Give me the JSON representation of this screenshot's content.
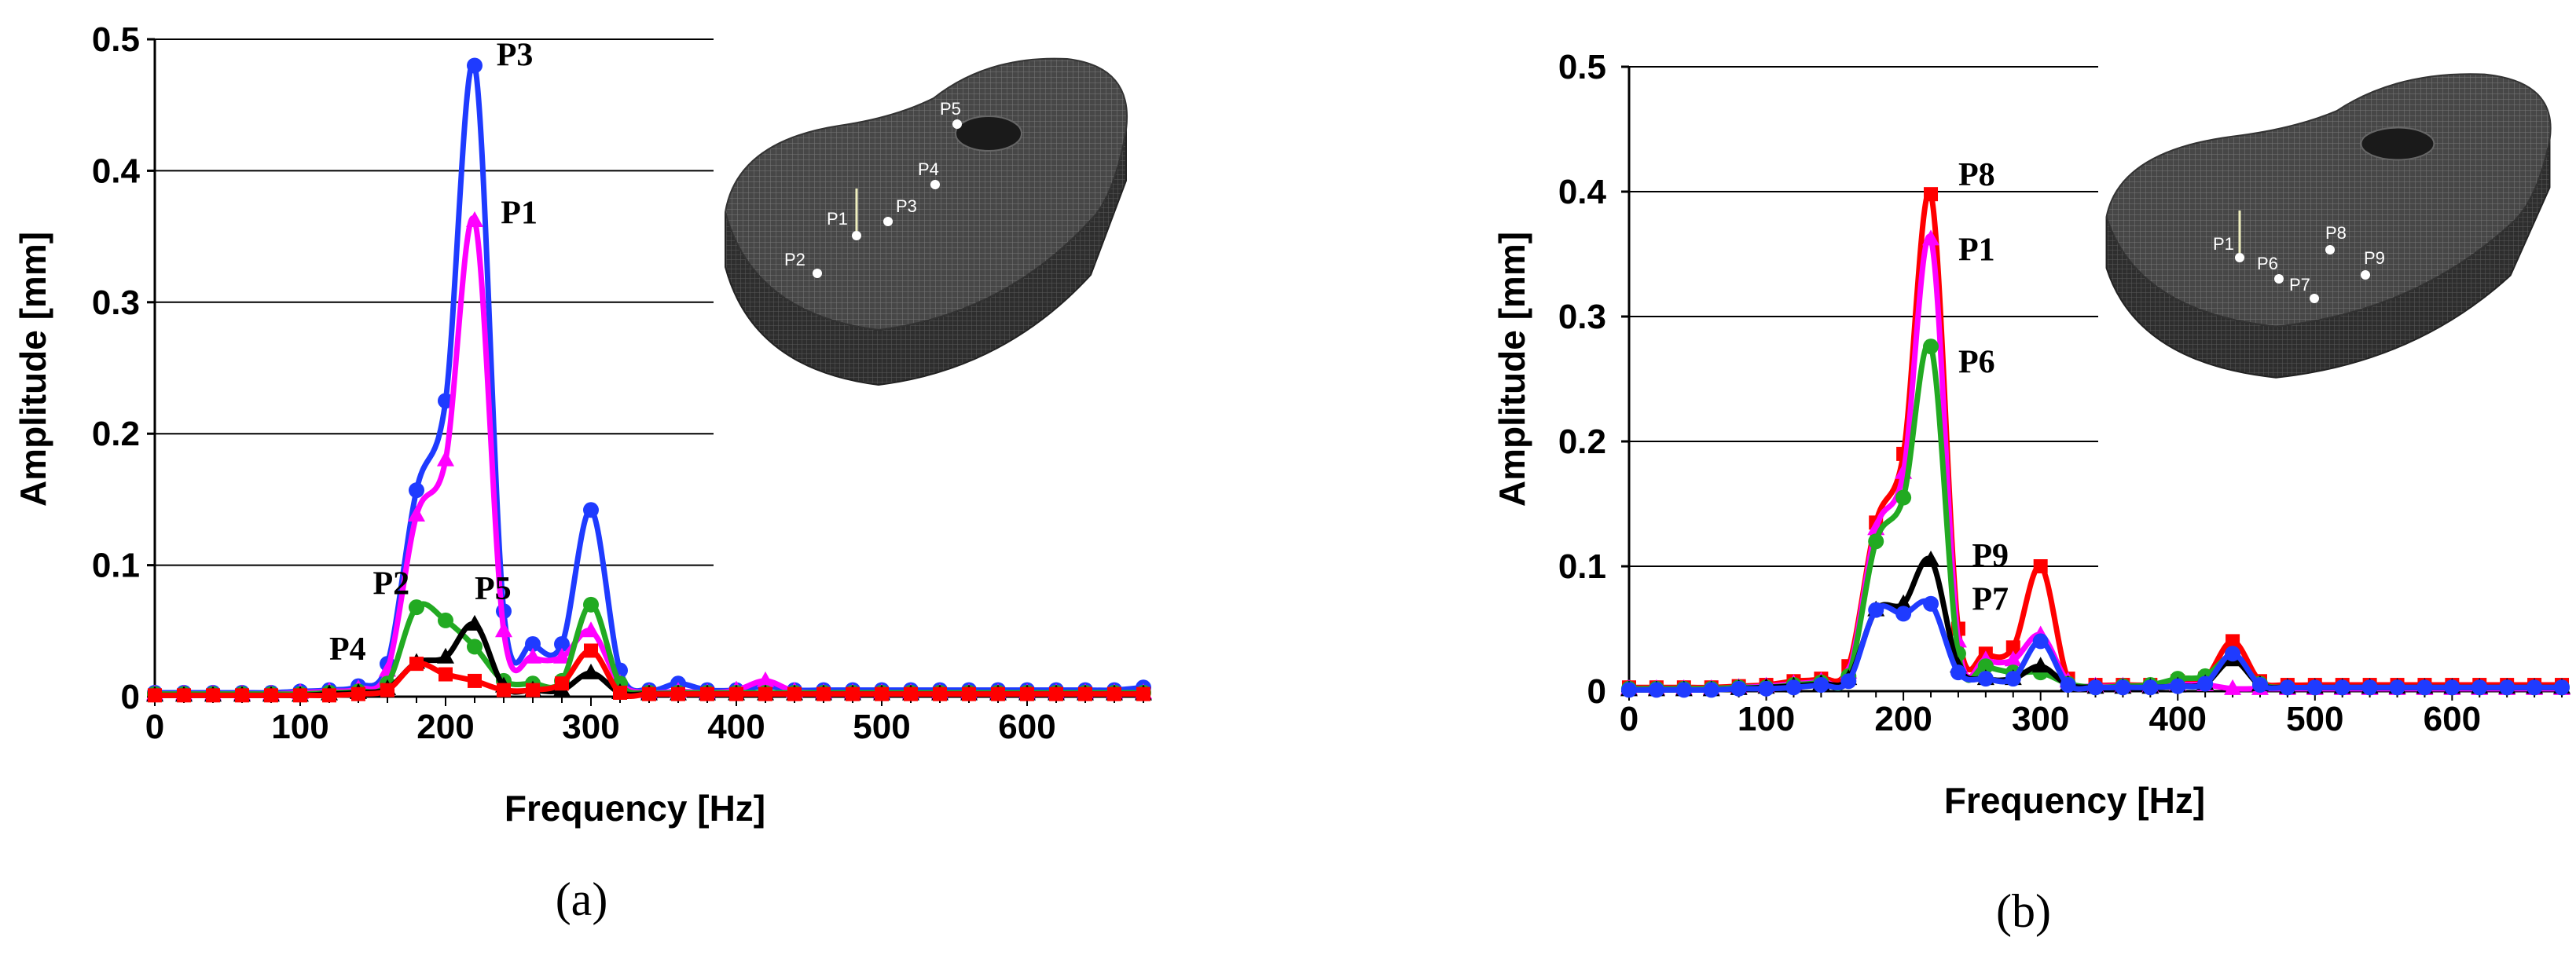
{
  "chart_data": [
    {
      "type": "line",
      "panel_label": "(a)",
      "xlabel": "Frequency [Hz]",
      "ylabel": "Amplitude [mm]",
      "xlim": [
        0,
        680
      ],
      "ylim": [
        0,
        0.5
      ],
      "x_ticks": [
        "0",
        "100",
        "200",
        "300",
        "400",
        "500",
        "600"
      ],
      "y_ticks": [
        "0",
        "0.1",
        "0.2",
        "0.3",
        "0.4",
        "0.5"
      ],
      "grid": "horizontal",
      "legend": "none",
      "x": [
        0,
        20,
        40,
        60,
        80,
        100,
        120,
        140,
        160,
        180,
        200,
        220,
        240,
        260,
        280,
        300,
        320,
        340,
        360,
        380,
        400,
        420,
        440,
        460,
        480,
        500,
        520,
        540,
        560,
        580,
        600,
        620,
        640,
        660,
        680
      ],
      "series": [
        {
          "name": "P3",
          "color": "#1f3bff",
          "marker": "circle",
          "values": [
            0.003,
            0.003,
            0.003,
            0.003,
            0.003,
            0.004,
            0.005,
            0.008,
            0.025,
            0.157,
            0.225,
            0.48,
            0.065,
            0.04,
            0.04,
            0.142,
            0.02,
            0.005,
            0.01,
            0.005,
            0.005,
            0.008,
            0.005,
            0.005,
            0.005,
            0.005,
            0.005,
            0.005,
            0.005,
            0.005,
            0.005,
            0.005,
            0.005,
            0.005,
            0.007
          ]
        },
        {
          "name": "P1",
          "color": "#ff00ff",
          "marker": "triangle",
          "values": [
            0.002,
            0.002,
            0.002,
            0.002,
            0.002,
            0.003,
            0.004,
            0.006,
            0.02,
            0.138,
            0.18,
            0.362,
            0.05,
            0.03,
            0.03,
            0.05,
            0.01,
            0.003,
            0.004,
            0.003,
            0.005,
            0.012,
            0.004,
            0.003,
            0.003,
            0.003,
            0.003,
            0.003,
            0.003,
            0.003,
            0.003,
            0.003,
            0.003,
            0.003,
            0.003
          ]
        },
        {
          "name": "P2",
          "color": "#22aa22",
          "marker": "circle",
          "values": [
            0.002,
            0.002,
            0.002,
            0.002,
            0.002,
            0.002,
            0.003,
            0.004,
            0.01,
            0.068,
            0.058,
            0.038,
            0.012,
            0.01,
            0.012,
            0.07,
            0.01,
            0.003,
            0.003,
            0.003,
            0.003,
            0.003,
            0.003,
            0.003,
            0.003,
            0.003,
            0.003,
            0.003,
            0.003,
            0.003,
            0.003,
            0.003,
            0.003,
            0.003,
            0.003
          ]
        },
        {
          "name": "P5",
          "color": "#000000",
          "marker": "triangle",
          "values": [
            0.001,
            0.001,
            0.001,
            0.001,
            0.001,
            0.001,
            0.002,
            0.003,
            0.006,
            0.026,
            0.03,
            0.055,
            0.008,
            0.005,
            0.005,
            0.018,
            0.003,
            0.002,
            0.002,
            0.002,
            0.002,
            0.002,
            0.002,
            0.002,
            0.002,
            0.002,
            0.002,
            0.002,
            0.002,
            0.002,
            0.002,
            0.002,
            0.002,
            0.002,
            0.002
          ]
        },
        {
          "name": "P4",
          "color": "#ff0000",
          "marker": "square",
          "values": [
            0.001,
            0.001,
            0.001,
            0.001,
            0.001,
            0.001,
            0.001,
            0.002,
            0.005,
            0.025,
            0.017,
            0.012,
            0.005,
            0.005,
            0.01,
            0.035,
            0.003,
            0.002,
            0.002,
            0.002,
            0.002,
            0.002,
            0.002,
            0.002,
            0.002,
            0.002,
            0.002,
            0.002,
            0.002,
            0.002,
            0.002,
            0.002,
            0.002,
            0.002,
            0.002
          ]
        }
      ],
      "annotations": [
        {
          "text": "P3",
          "x": 235,
          "y": 0.48
        },
        {
          "text": "P1",
          "x": 238,
          "y": 0.36
        },
        {
          "text": "P2",
          "x": 150,
          "y": 0.078
        },
        {
          "text": "P5",
          "x": 220,
          "y": 0.074
        },
        {
          "text": "P4",
          "x": 120,
          "y": 0.028
        }
      ],
      "inset_labels": [
        "P1",
        "P2",
        "P3",
        "P4",
        "P5"
      ]
    },
    {
      "type": "line",
      "panel_label": "(b)",
      "xlabel": "Frequency [Hz]",
      "ylabel": "Amplitude [mm]",
      "xlim": [
        0,
        680
      ],
      "ylim": [
        0,
        0.5
      ],
      "x_ticks": [
        "0",
        "100",
        "200",
        "300",
        "400",
        "500",
        "600"
      ],
      "y_ticks": [
        "0",
        "0.1",
        "0.2",
        "0.3",
        "0.4",
        "0.5"
      ],
      "grid": "horizontal",
      "legend": "none",
      "x": [
        0,
        20,
        40,
        60,
        80,
        100,
        120,
        140,
        160,
        180,
        200,
        220,
        240,
        260,
        280,
        300,
        320,
        340,
        360,
        380,
        400,
        420,
        440,
        460,
        480,
        500,
        520,
        540,
        560,
        580,
        600,
        620,
        640,
        660,
        680
      ],
      "series": [
        {
          "name": "P8",
          "color": "#ff0000",
          "marker": "square",
          "values": [
            0.003,
            0.003,
            0.003,
            0.003,
            0.004,
            0.005,
            0.008,
            0.01,
            0.02,
            0.135,
            0.19,
            0.398,
            0.05,
            0.03,
            0.035,
            0.1,
            0.01,
            0.005,
            0.005,
            0.005,
            0.008,
            0.01,
            0.04,
            0.008,
            0.005,
            0.005,
            0.005,
            0.005,
            0.005,
            0.005,
            0.005,
            0.005,
            0.005,
            0.005,
            0.005
          ]
        },
        {
          "name": "P1",
          "color": "#ff00ff",
          "marker": "triangle",
          "values": [
            0.002,
            0.002,
            0.002,
            0.002,
            0.003,
            0.004,
            0.006,
            0.008,
            0.015,
            0.13,
            0.175,
            0.362,
            0.04,
            0.025,
            0.025,
            0.045,
            0.008,
            0.004,
            0.004,
            0.004,
            0.005,
            0.005,
            0.002,
            0.002,
            0.002,
            0.002,
            0.002,
            0.002,
            0.002,
            0.002,
            0.002,
            0.002,
            0.002,
            0.002,
            0.002
          ]
        },
        {
          "name": "P6",
          "color": "#22aa22",
          "marker": "circle",
          "values": [
            0.002,
            0.002,
            0.002,
            0.002,
            0.003,
            0.003,
            0.005,
            0.007,
            0.012,
            0.12,
            0.155,
            0.276,
            0.03,
            0.02,
            0.015,
            0.015,
            0.006,
            0.003,
            0.004,
            0.005,
            0.01,
            0.012,
            0.028,
            0.006,
            0.003,
            0.003,
            0.003,
            0.003,
            0.003,
            0.003,
            0.003,
            0.003,
            0.003,
            0.003,
            0.003
          ]
        },
        {
          "name": "P9",
          "color": "#000000",
          "marker": "triangle",
          "values": [
            0.001,
            0.001,
            0.001,
            0.001,
            0.002,
            0.003,
            0.004,
            0.006,
            0.01,
            0.065,
            0.07,
            0.105,
            0.02,
            0.01,
            0.01,
            0.02,
            0.005,
            0.003,
            0.003,
            0.003,
            0.004,
            0.006,
            0.025,
            0.005,
            0.003,
            0.003,
            0.003,
            0.003,
            0.003,
            0.003,
            0.003,
            0.003,
            0.003,
            0.003,
            0.003
          ]
        },
        {
          "name": "P7",
          "color": "#1f3bff",
          "marker": "circle",
          "values": [
            0.001,
            0.001,
            0.001,
            0.001,
            0.002,
            0.002,
            0.003,
            0.005,
            0.008,
            0.065,
            0.062,
            0.07,
            0.015,
            0.01,
            0.01,
            0.04,
            0.005,
            0.003,
            0.003,
            0.003,
            0.004,
            0.006,
            0.03,
            0.005,
            0.003,
            0.003,
            0.003,
            0.003,
            0.003,
            0.003,
            0.003,
            0.003,
            0.003,
            0.003,
            0.003
          ]
        }
      ],
      "annotations": [
        {
          "text": "P8",
          "x": 240,
          "y": 0.405
        },
        {
          "text": "P1",
          "x": 240,
          "y": 0.345
        },
        {
          "text": "P6",
          "x": 240,
          "y": 0.255
        },
        {
          "text": "P9",
          "x": 250,
          "y": 0.1
        },
        {
          "text": "P7",
          "x": 250,
          "y": 0.065
        }
      ],
      "inset_labels": [
        "P1",
        "P6",
        "P7",
        "P8",
        "P9"
      ]
    }
  ]
}
